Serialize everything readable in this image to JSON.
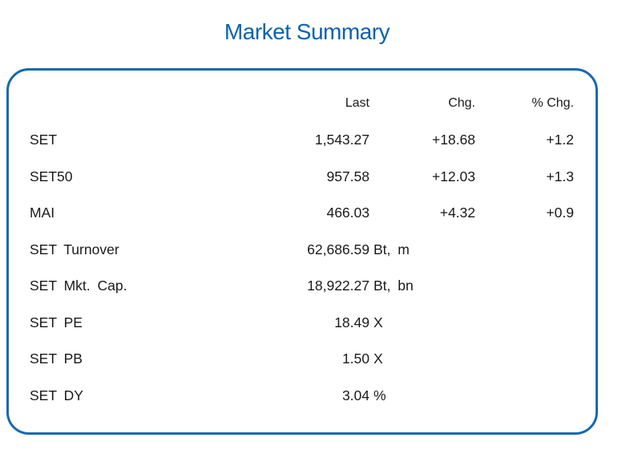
{
  "title": "Market Summary",
  "headers": {
    "last": "Last",
    "chg": "Chg.",
    "pct_chg": "% Chg."
  },
  "indices": [
    {
      "name": "SET",
      "last": "1,543.27",
      "chg": "+18.68",
      "pct": "+1.2"
    },
    {
      "name": "SET50",
      "last": "957.58",
      "chg": "+12.03",
      "pct": "+1.3"
    },
    {
      "name": "MAI",
      "last": "466.03",
      "chg": "+4.32",
      "pct": "+0.9"
    }
  ],
  "stats": [
    {
      "name": "SET Turnover",
      "value": "62,686.59",
      "unit": "Bt, m"
    },
    {
      "name": "SET Mkt. Cap.",
      "value": "18,922.27",
      "unit": "Bt, bn"
    },
    {
      "name": "SET PE",
      "value": "18.49",
      "unit": "X"
    },
    {
      "name": "SET PB",
      "value": "1.50",
      "unit": "X"
    },
    {
      "name": "SET DY",
      "value": "3.04",
      "unit": "%"
    }
  ]
}
